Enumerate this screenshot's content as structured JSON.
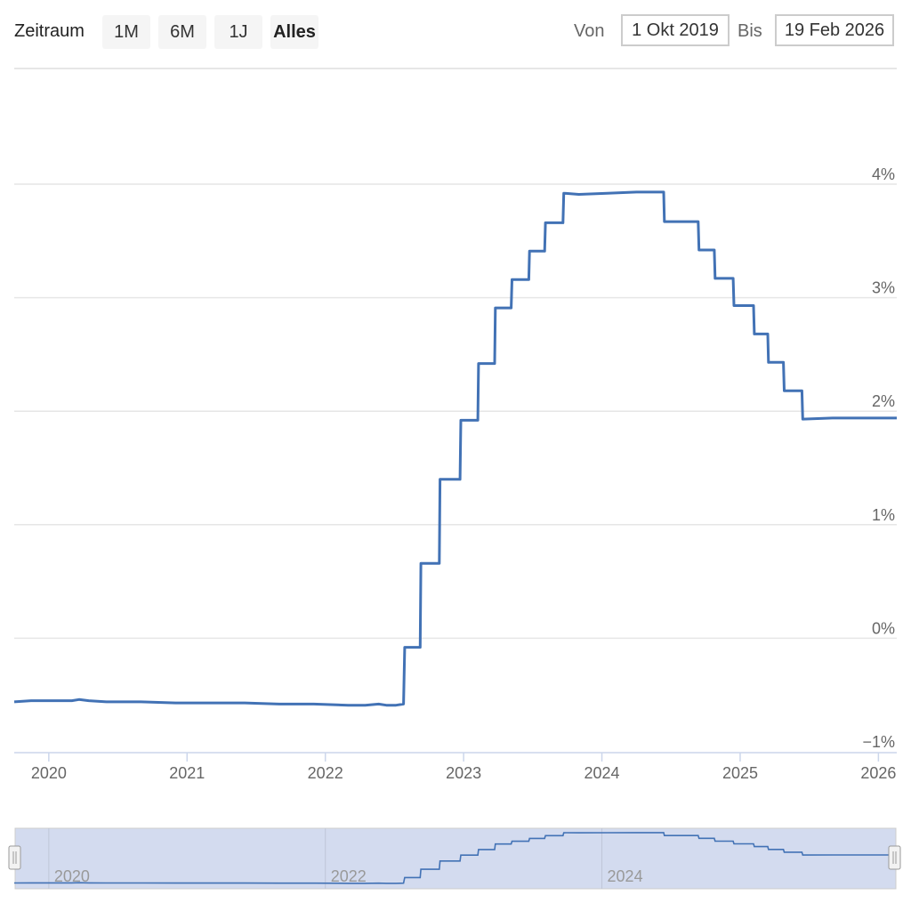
{
  "toolbar": {
    "zoom_label": "Zeitraum",
    "buttons": [
      "1M",
      "6M",
      "1J",
      "Alles"
    ],
    "selected": "Alles",
    "from_label": "Von",
    "from_value": "1 Okt 2019",
    "to_label": "Bis",
    "to_value": "19 Feb 2026"
  },
  "chart_data": {
    "type": "line",
    "title": "",
    "xlabel": "",
    "ylabel": "",
    "xlim": [
      "2019-10-01",
      "2026-02-19"
    ],
    "ylim": [
      -1,
      4
    ],
    "y_ticks": [
      "−1%",
      "0%",
      "1%",
      "2%",
      "3%",
      "4%"
    ],
    "x_ticks": [
      "2020",
      "2021",
      "2022",
      "2023",
      "2024",
      "2025",
      "2026"
    ],
    "grid": true,
    "color": "#4272b5",
    "series": [
      {
        "x": [
          "2019-10-01",
          "2019-11-15",
          "2020-01-15",
          "2020-03-01",
          "2020-03-20",
          "2020-04-15",
          "2020-06-01",
          "2020-09-01",
          "2020-12-01",
          "2021-03-01",
          "2021-06-01",
          "2021-09-01",
          "2021-12-01",
          "2022-03-01",
          "2022-04-15",
          "2022-05-20",
          "2022-06-10",
          "2022-07-05",
          "2022-07-25",
          "2022-07-28",
          "2022-09-08",
          "2022-09-10",
          "2022-10-28",
          "2022-10-30",
          "2022-12-22",
          "2022-12-24",
          "2023-02-08",
          "2023-02-10",
          "2023-03-22",
          "2023-03-24",
          "2023-05-05",
          "2023-05-07",
          "2023-06-21",
          "2023-06-23",
          "2023-08-02",
          "2023-08-04",
          "2023-09-20",
          "2023-09-22",
          "2023-11-01",
          "2024-01-15",
          "2024-04-01",
          "2024-06-12",
          "2024-06-14",
          "2024-09-12",
          "2024-09-14",
          "2024-10-24",
          "2024-10-26",
          "2024-12-13",
          "2024-12-15",
          "2025-02-06",
          "2025-02-08",
          "2025-03-13",
          "2025-03-15",
          "2025-04-24",
          "2025-04-26",
          "2025-06-12",
          "2025-06-14",
          "2025-09-01",
          "2025-12-01",
          "2026-02-19"
        ],
        "values": [
          -0.56,
          -0.55,
          -0.55,
          -0.55,
          -0.54,
          -0.55,
          -0.56,
          -0.56,
          -0.57,
          -0.57,
          -0.57,
          -0.58,
          -0.58,
          -0.59,
          -0.59,
          -0.58,
          -0.59,
          -0.59,
          -0.58,
          -0.08,
          -0.08,
          0.66,
          0.66,
          1.4,
          1.4,
          1.92,
          1.92,
          2.42,
          2.42,
          2.91,
          2.91,
          3.16,
          3.16,
          3.41,
          3.41,
          3.66,
          3.66,
          3.92,
          3.91,
          3.92,
          3.93,
          3.93,
          3.67,
          3.67,
          3.42,
          3.42,
          3.17,
          3.17,
          2.93,
          2.93,
          2.68,
          2.68,
          2.43,
          2.43,
          2.18,
          2.18,
          1.93,
          1.94,
          1.94,
          1.94
        ]
      }
    ],
    "navigator_ticks": [
      "2020",
      "2022",
      "2024"
    ]
  }
}
